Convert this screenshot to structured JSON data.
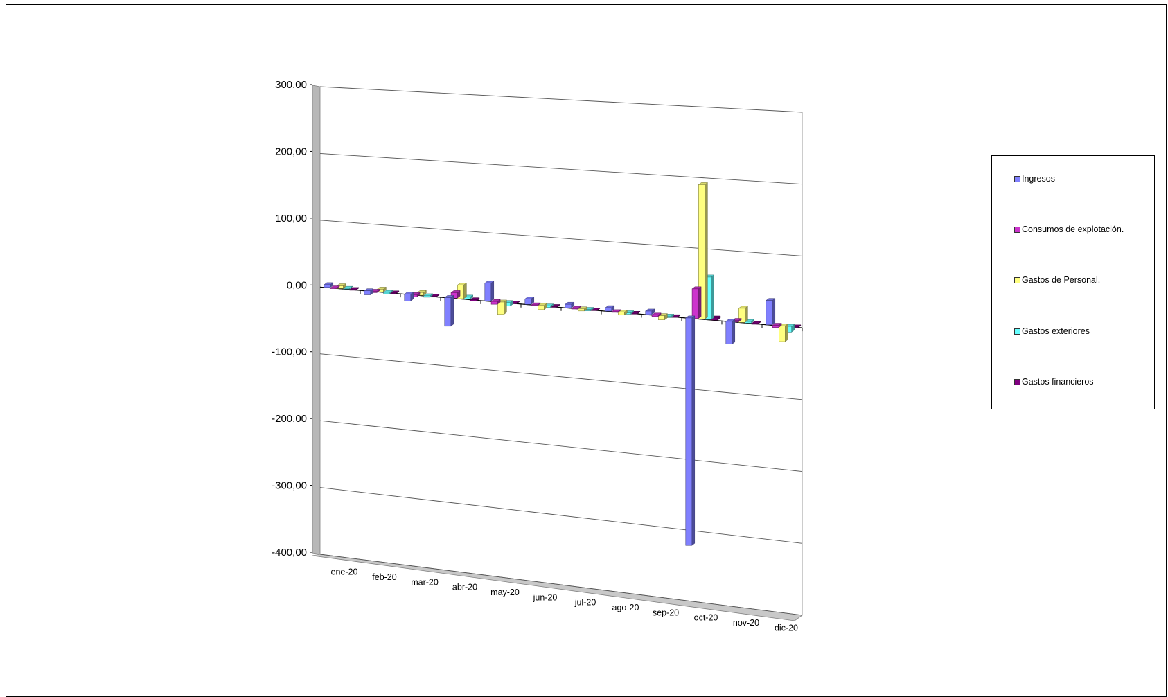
{
  "chart_data": {
    "type": "bar",
    "style": "3d-clustered-column",
    "categories": [
      "ene-20",
      "feb-20",
      "mar-20",
      "abr-20",
      "may-20",
      "jun-20",
      "jul-20",
      "ago-20",
      "sep-20",
      "oct-20",
      "nov-20",
      "dic-20"
    ],
    "ylim": [
      -400,
      300
    ],
    "yticks": [
      300,
      200,
      100,
      0,
      -100,
      -200,
      -300,
      -400
    ],
    "ytick_labels": [
      "300,00",
      "200,00",
      "100,00",
      "0,00",
      "-100,00",
      "-200,00",
      "-300,00",
      "-400,00"
    ],
    "grid": true,
    "legend_position": "right",
    "series": [
      {
        "name": "Ingresos",
        "color": "#8080ff",
        "values": [
          4,
          -6,
          -10,
          -42,
          26,
          8,
          5,
          5,
          5,
          -322,
          -32,
          34
        ]
      },
      {
        "name": "Consumos de explotación.",
        "color": "#cc33cc",
        "values": [
          -1,
          -2,
          -3,
          8,
          -4,
          -1,
          -1,
          -1,
          -2,
          42,
          2,
          -3
        ]
      },
      {
        "name": "Gastos de Personal.",
        "color": "#ffff80",
        "values": [
          4,
          4,
          4,
          20,
          -18,
          -6,
          -3,
          -4,
          -6,
          190,
          20,
          -22
        ]
      },
      {
        "name": "Gastos exteriores",
        "color": "#66ffff",
        "values": [
          1,
          -2,
          -2,
          3,
          -5,
          -2,
          -2,
          -2,
          -2,
          60,
          2,
          -8
        ]
      },
      {
        "name": "Gastos financieros",
        "color": "#800080",
        "values": [
          -1,
          -1,
          -1,
          -2,
          -1,
          -1,
          -1,
          -1,
          -1,
          3,
          -1,
          -1
        ]
      }
    ]
  }
}
